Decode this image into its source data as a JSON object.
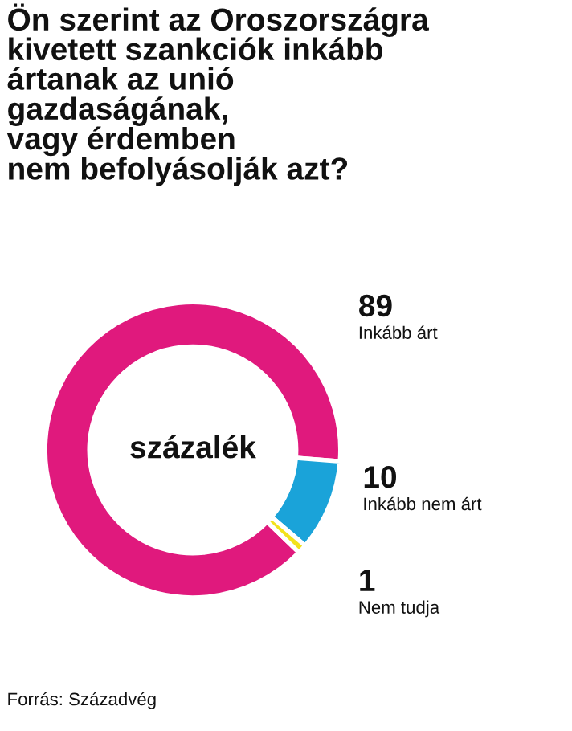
{
  "chart_data": {
    "type": "donut",
    "title": "Ön szerint az Oroszországra\nkivetett szankciók inkább\nártanak az unió\ngazdaságának,\nvagy érdemben\nnem befolyásolják azt?",
    "categories": [
      "Inkább árt",
      "Inkább nem árt",
      "Nem tudja"
    ],
    "values": [
      89,
      10,
      1
    ],
    "colors": [
      "#e0197d",
      "#1aa3d9",
      "#f2e21c"
    ],
    "data_labels": true,
    "legend": false,
    "annotations": [
      "százalék",
      "Forrás: Századvég"
    ]
  }
}
